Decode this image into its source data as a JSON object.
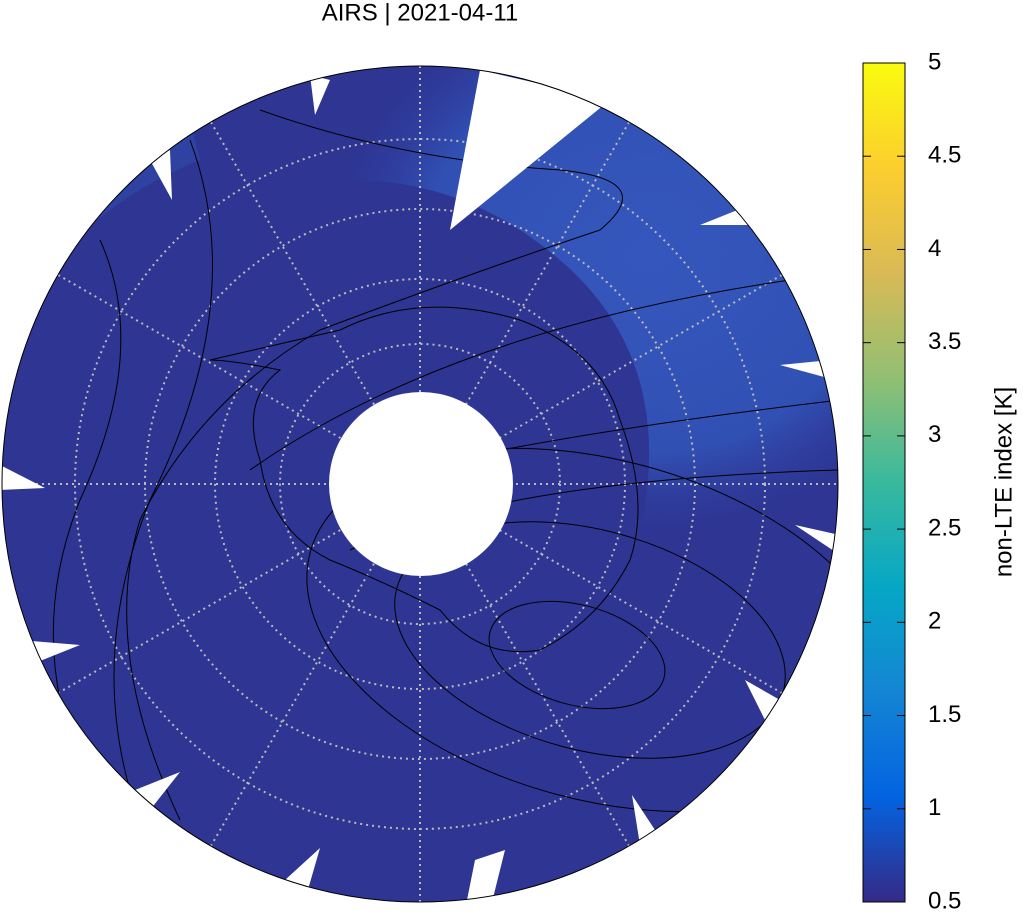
{
  "title": "AIRS | 2021-04-11",
  "colorbar": {
    "label": "non-LTE index [K]",
    "lim": [
      0.5,
      5
    ],
    "ticks": [
      0.5,
      1,
      1.5,
      2,
      2.5,
      3,
      3.5,
      4,
      4.5,
      5
    ]
  }
}
